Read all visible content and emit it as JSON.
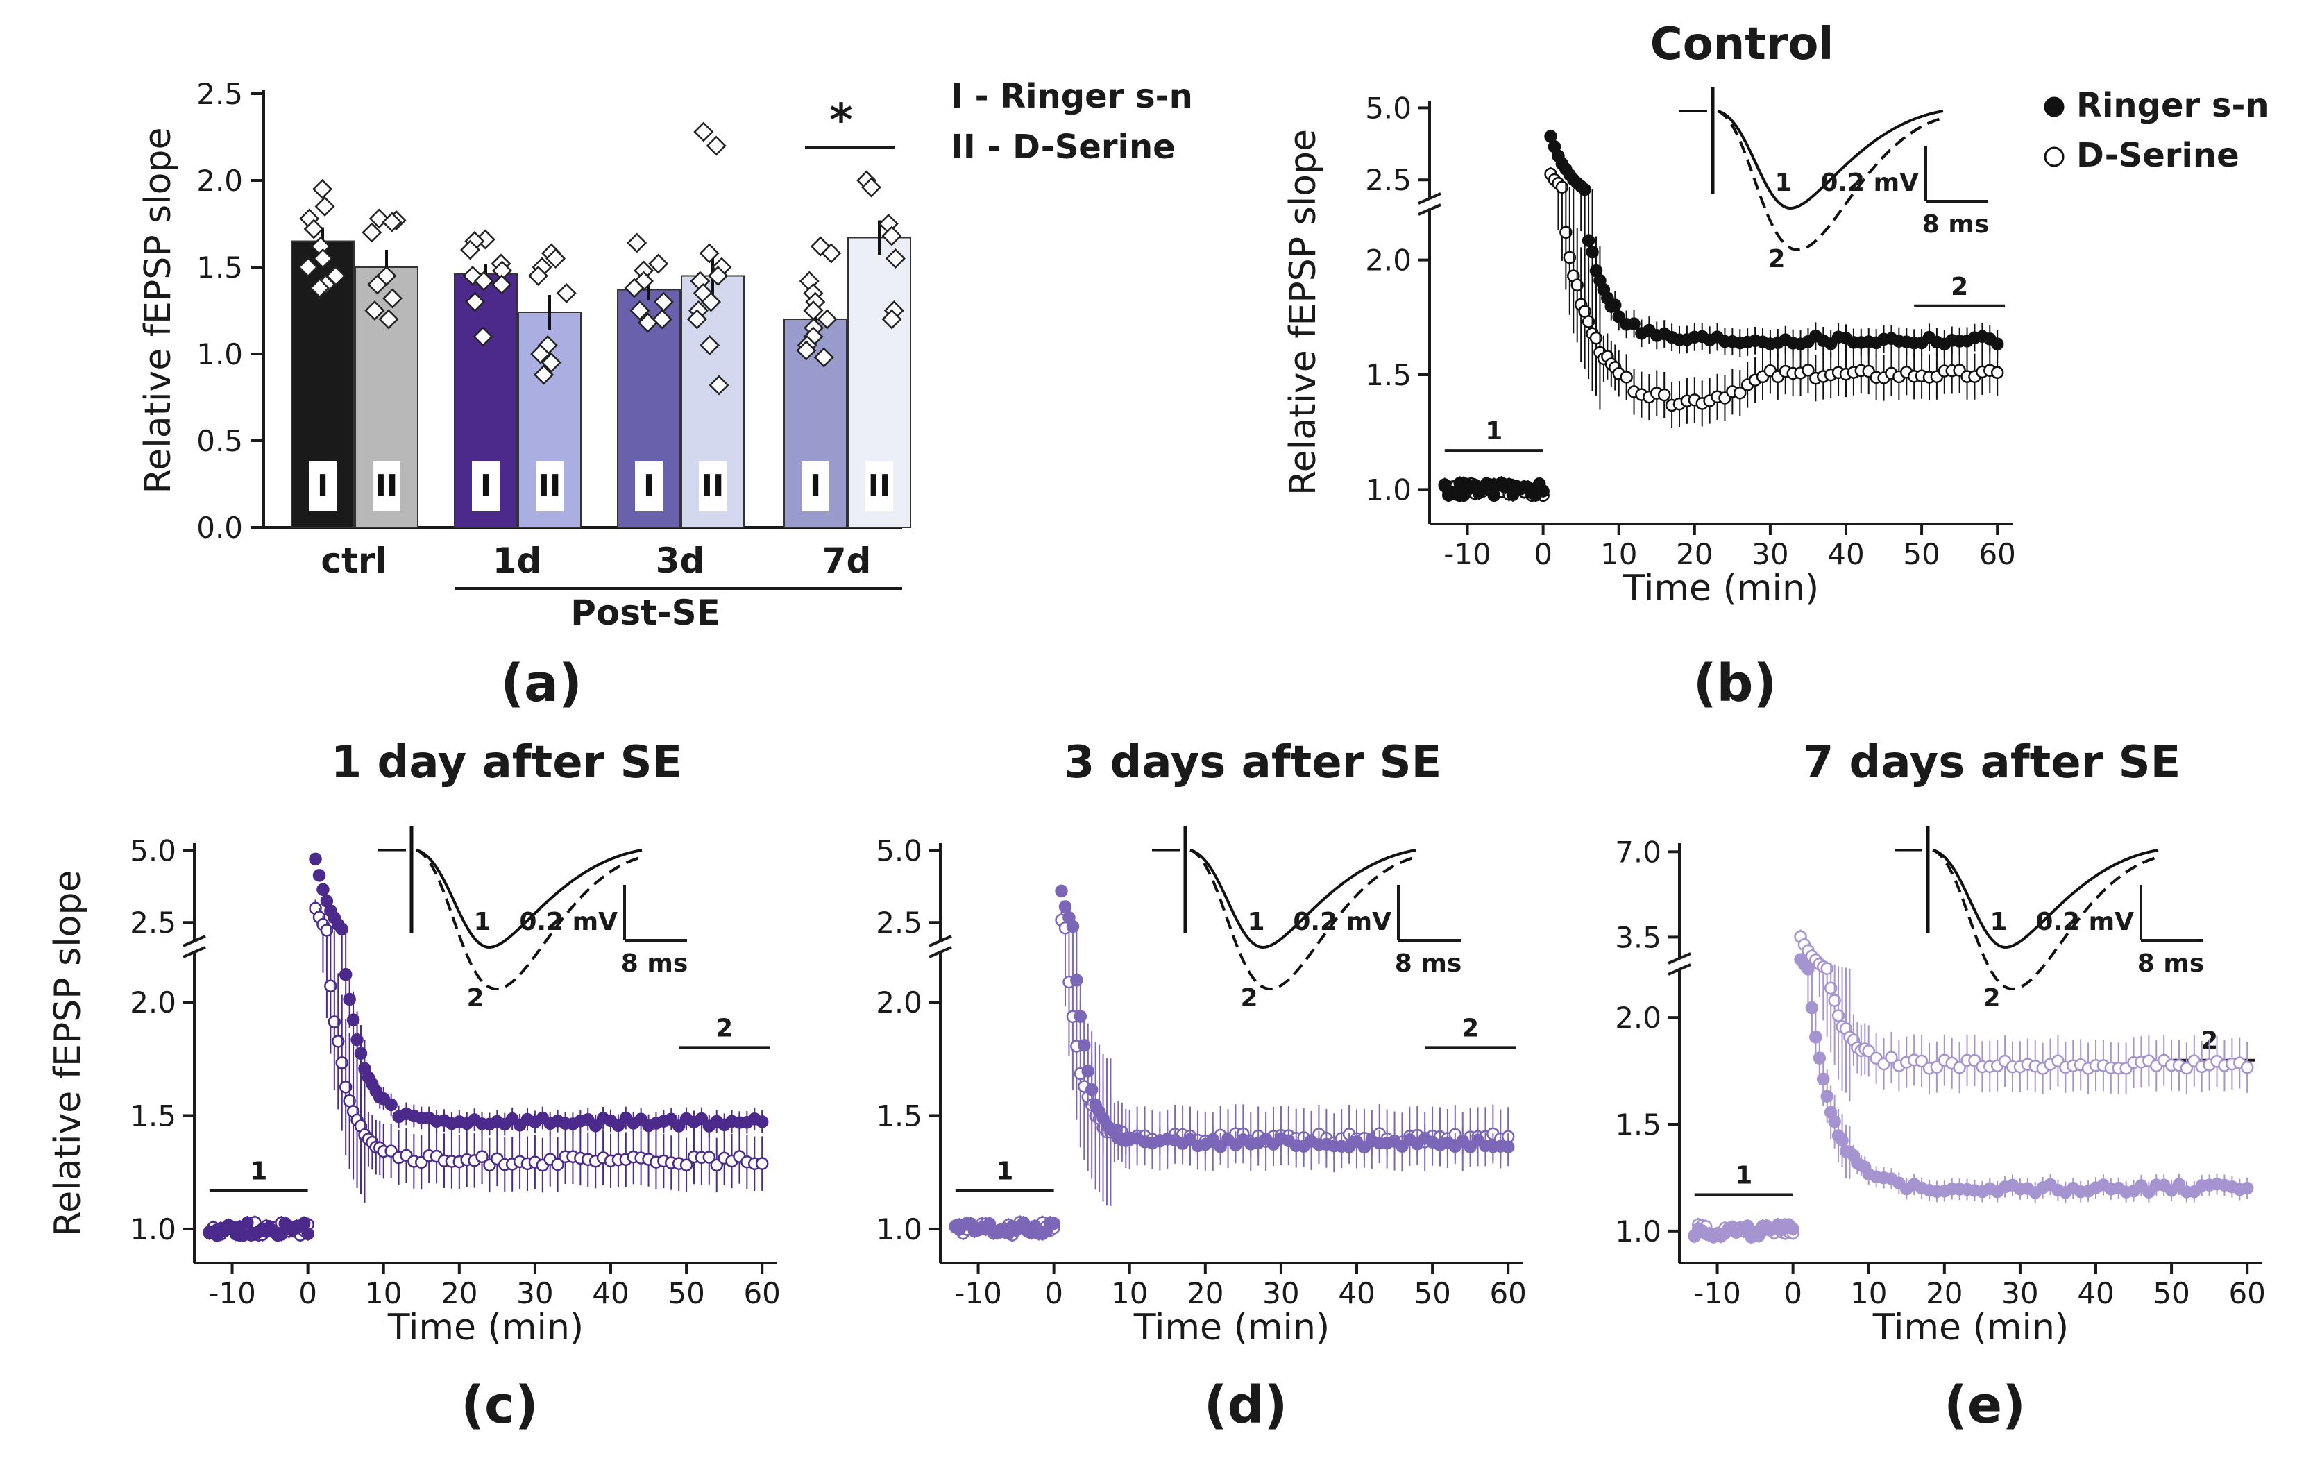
{
  "chart_data": [
    {
      "id": "a",
      "type": "bar",
      "panel_label": "(a)",
      "ylabel": "Relative fEPSP slope",
      "ylim": [
        0,
        2.5
      ],
      "yticks": [
        "0.0",
        "0.5",
        "1.0",
        "1.5",
        "2.0",
        "2.5"
      ],
      "categories": [
        "ctrl",
        "1d",
        "3d",
        "7d"
      ],
      "group_label": "Post-SE",
      "legend": [
        "I - Ringer s-n",
        "II - D-Serine"
      ],
      "roman": [
        "I",
        "II"
      ],
      "significance": "*",
      "bars": [
        {
          "category": "ctrl",
          "group": "I",
          "value": 1.65,
          "err": 0.08,
          "color": "#1a1a1a",
          "points": [
            1.95,
            1.85,
            1.78,
            1.72,
            1.62,
            1.55,
            1.5,
            1.45,
            1.4,
            1.38
          ]
        },
        {
          "category": "ctrl",
          "group": "II",
          "value": 1.5,
          "err": 0.1,
          "color": "#b8b8b8",
          "points": [
            1.78,
            1.77,
            1.76,
            1.7,
            1.45,
            1.4,
            1.32,
            1.25,
            1.2
          ]
        },
        {
          "category": "1d",
          "group": "I",
          "value": 1.46,
          "err": 0.06,
          "color": "#4b2a8c",
          "points": [
            1.66,
            1.65,
            1.6,
            1.52,
            1.48,
            1.45,
            1.42,
            1.4,
            1.3,
            1.1
          ]
        },
        {
          "category": "1d",
          "group": "II",
          "value": 1.24,
          "err": 0.1,
          "color": "#aaaee0",
          "points": [
            1.58,
            1.55,
            1.5,
            1.45,
            1.35,
            1.05,
            1.0,
            0.95,
            0.88
          ]
        },
        {
          "category": "3d",
          "group": "I",
          "value": 1.37,
          "err": 0.06,
          "color": "#6a61ad",
          "points": [
            1.64,
            1.52,
            1.48,
            1.42,
            1.38,
            1.3,
            1.25,
            1.2,
            1.18
          ]
        },
        {
          "category": "3d",
          "group": "II",
          "value": 1.45,
          "err": 0.12,
          "color": "#d4d8ee",
          "points": [
            2.28,
            2.2,
            1.58,
            1.5,
            1.45,
            1.42,
            1.35,
            1.3,
            1.25,
            1.2,
            1.05,
            0.82
          ]
        },
        {
          "category": "7d",
          "group": "I",
          "value": 1.2,
          "err": 0.06,
          "color": "#9a9bcd",
          "points": [
            1.62,
            1.58,
            1.42,
            1.35,
            1.3,
            1.25,
            1.2,
            1.15,
            1.1,
            1.05,
            1.02,
            0.98
          ]
        },
        {
          "category": "7d",
          "group": "II",
          "value": 1.67,
          "err": 0.1,
          "color": "#eceef8",
          "points": [
            2.0,
            1.96,
            1.75,
            1.68,
            1.55,
            1.25,
            1.2
          ]
        }
      ]
    },
    {
      "id": "b",
      "type": "scatter",
      "title": "Control",
      "panel_label": "(b)",
      "ylabel": "Relative fEPSP slope",
      "xlabel": "Time (min)",
      "xticks": [
        "-10",
        "0",
        "10",
        "20",
        "30",
        "40",
        "50",
        "60"
      ],
      "yticks_upper": [
        "2.5",
        "5.0"
      ],
      "yticks_lower": [
        "1.0",
        "1.5",
        "2.0"
      ],
      "color": "#111111",
      "legend": [
        "Ringer s-n",
        "D-Serine"
      ],
      "baseline_label": "1",
      "late_label": "2",
      "inset_labels": [
        "1",
        "2"
      ],
      "scale_mv": "0.2 mV",
      "scale_ms": "8 ms",
      "series_ringer": {
        "peak": 4.0,
        "plateau": 1.65,
        "tau": 3.0,
        "err": 0.06
      },
      "series_dserine": {
        "peak": 2.7,
        "plateau": 1.5,
        "tau": 3.0,
        "err": 0.1,
        "dip": 0.12
      }
    },
    {
      "id": "c",
      "type": "scatter",
      "title": "1 day after SE",
      "panel_label": "(c)",
      "ylabel": "Relative fEPSP slope",
      "xlabel": "Time (min)",
      "xticks": [
        "-10",
        "0",
        "10",
        "20",
        "30",
        "40",
        "50",
        "60"
      ],
      "yticks_upper": [
        "2.5",
        "5.0"
      ],
      "yticks_lower": [
        "1.0",
        "1.5",
        "2.0"
      ],
      "color": "#4b2a8c",
      "baseline_label": "1",
      "late_label": "2",
      "inset_labels": [
        "1",
        "2"
      ],
      "scale_mv": "0.2 mV",
      "scale_ms": "8 ms",
      "series_ringer": {
        "peak": 4.7,
        "plateau": 1.47,
        "tau": 2.5,
        "err": 0.05
      },
      "series_dserine": {
        "peak": 3.0,
        "plateau": 1.3,
        "tau": 2.5,
        "err": 0.12
      }
    },
    {
      "id": "d",
      "type": "scatter",
      "title": "3 days after SE",
      "panel_label": "(d)",
      "xlabel": "Time (min)",
      "xticks": [
        "-10",
        "0",
        "10",
        "20",
        "30",
        "40",
        "50",
        "60"
      ],
      "yticks_upper": [
        "2.5",
        "5.0"
      ],
      "yticks_lower": [
        "1.0",
        "1.5",
        "2.0"
      ],
      "color": "#7c66b8",
      "baseline_label": "1",
      "late_label": "2",
      "inset_labels": [
        "1",
        "2"
      ],
      "scale_mv": "0.2 mV",
      "scale_ms": "8 ms",
      "series_ringer": {
        "peak": 3.6,
        "plateau": 1.38,
        "tau": 1.8,
        "err": 0.06
      },
      "series_dserine": {
        "peak": 2.6,
        "plateau": 1.4,
        "tau": 1.8,
        "err": 0.13
      }
    },
    {
      "id": "e",
      "type": "scatter",
      "title": "7 days after SE",
      "panel_label": "(e)",
      "xlabel": "Time (min)",
      "xticks": [
        "-10",
        "0",
        "10",
        "20",
        "30",
        "40",
        "50",
        "60"
      ],
      "yticks_upper": [
        "3.5",
        "7.0"
      ],
      "yticks_lower": [
        "1.0",
        "1.5",
        "2.0"
      ],
      "color": "#a694d0",
      "baseline_label": "1",
      "late_label": "2",
      "inset_labels": [
        "1",
        "2"
      ],
      "scale_mv": "0.2 mV",
      "scale_ms": "8 ms",
      "series_ringer": {
        "peak": 2.6,
        "plateau": 1.2,
        "tau": 3.0,
        "err": 0.05
      },
      "series_dserine": {
        "peak": 3.5,
        "plateau": 1.78,
        "tau": 2.5,
        "err": 0.12
      }
    }
  ]
}
